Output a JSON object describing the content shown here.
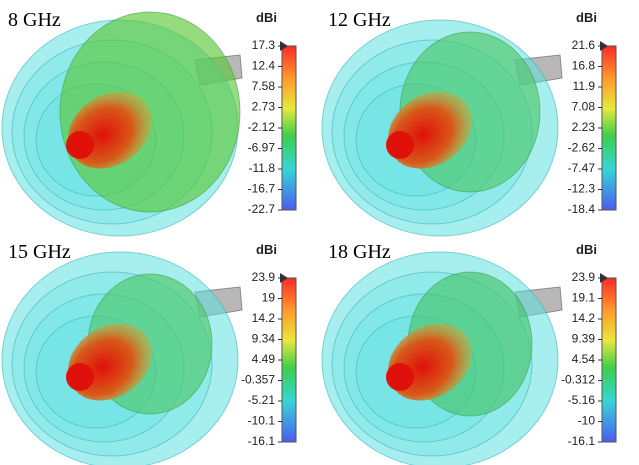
{
  "panels": [
    {
      "label": "8 GHz",
      "unit": "dBi",
      "ticks": [
        "17.3",
        "12.4",
        "7.58",
        "2.73",
        "-2.12",
        "-6.97",
        "-11.8",
        "-16.7",
        "-22.7"
      ]
    },
    {
      "label": "12 GHz",
      "unit": "dBi",
      "ticks": [
        "21.6",
        "16.8",
        "11.9",
        "7.08",
        "2.23",
        "-2.62",
        "-7.47",
        "-12.3",
        "-18.4"
      ]
    },
    {
      "label": "15 GHz",
      "unit": "dBi",
      "ticks": [
        "23.9",
        "19",
        "14.2",
        "9.34",
        "4.49",
        "-0.357",
        "-5.21",
        "-10.1",
        "-16.1"
      ]
    },
    {
      "label": "18 GHz",
      "unit": "dBi",
      "ticks": [
        "23.9",
        "19.1",
        "14.2",
        "9.39",
        "4.54",
        "-0.312",
        "-5.16",
        "-10",
        "-16.1"
      ]
    }
  ]
}
